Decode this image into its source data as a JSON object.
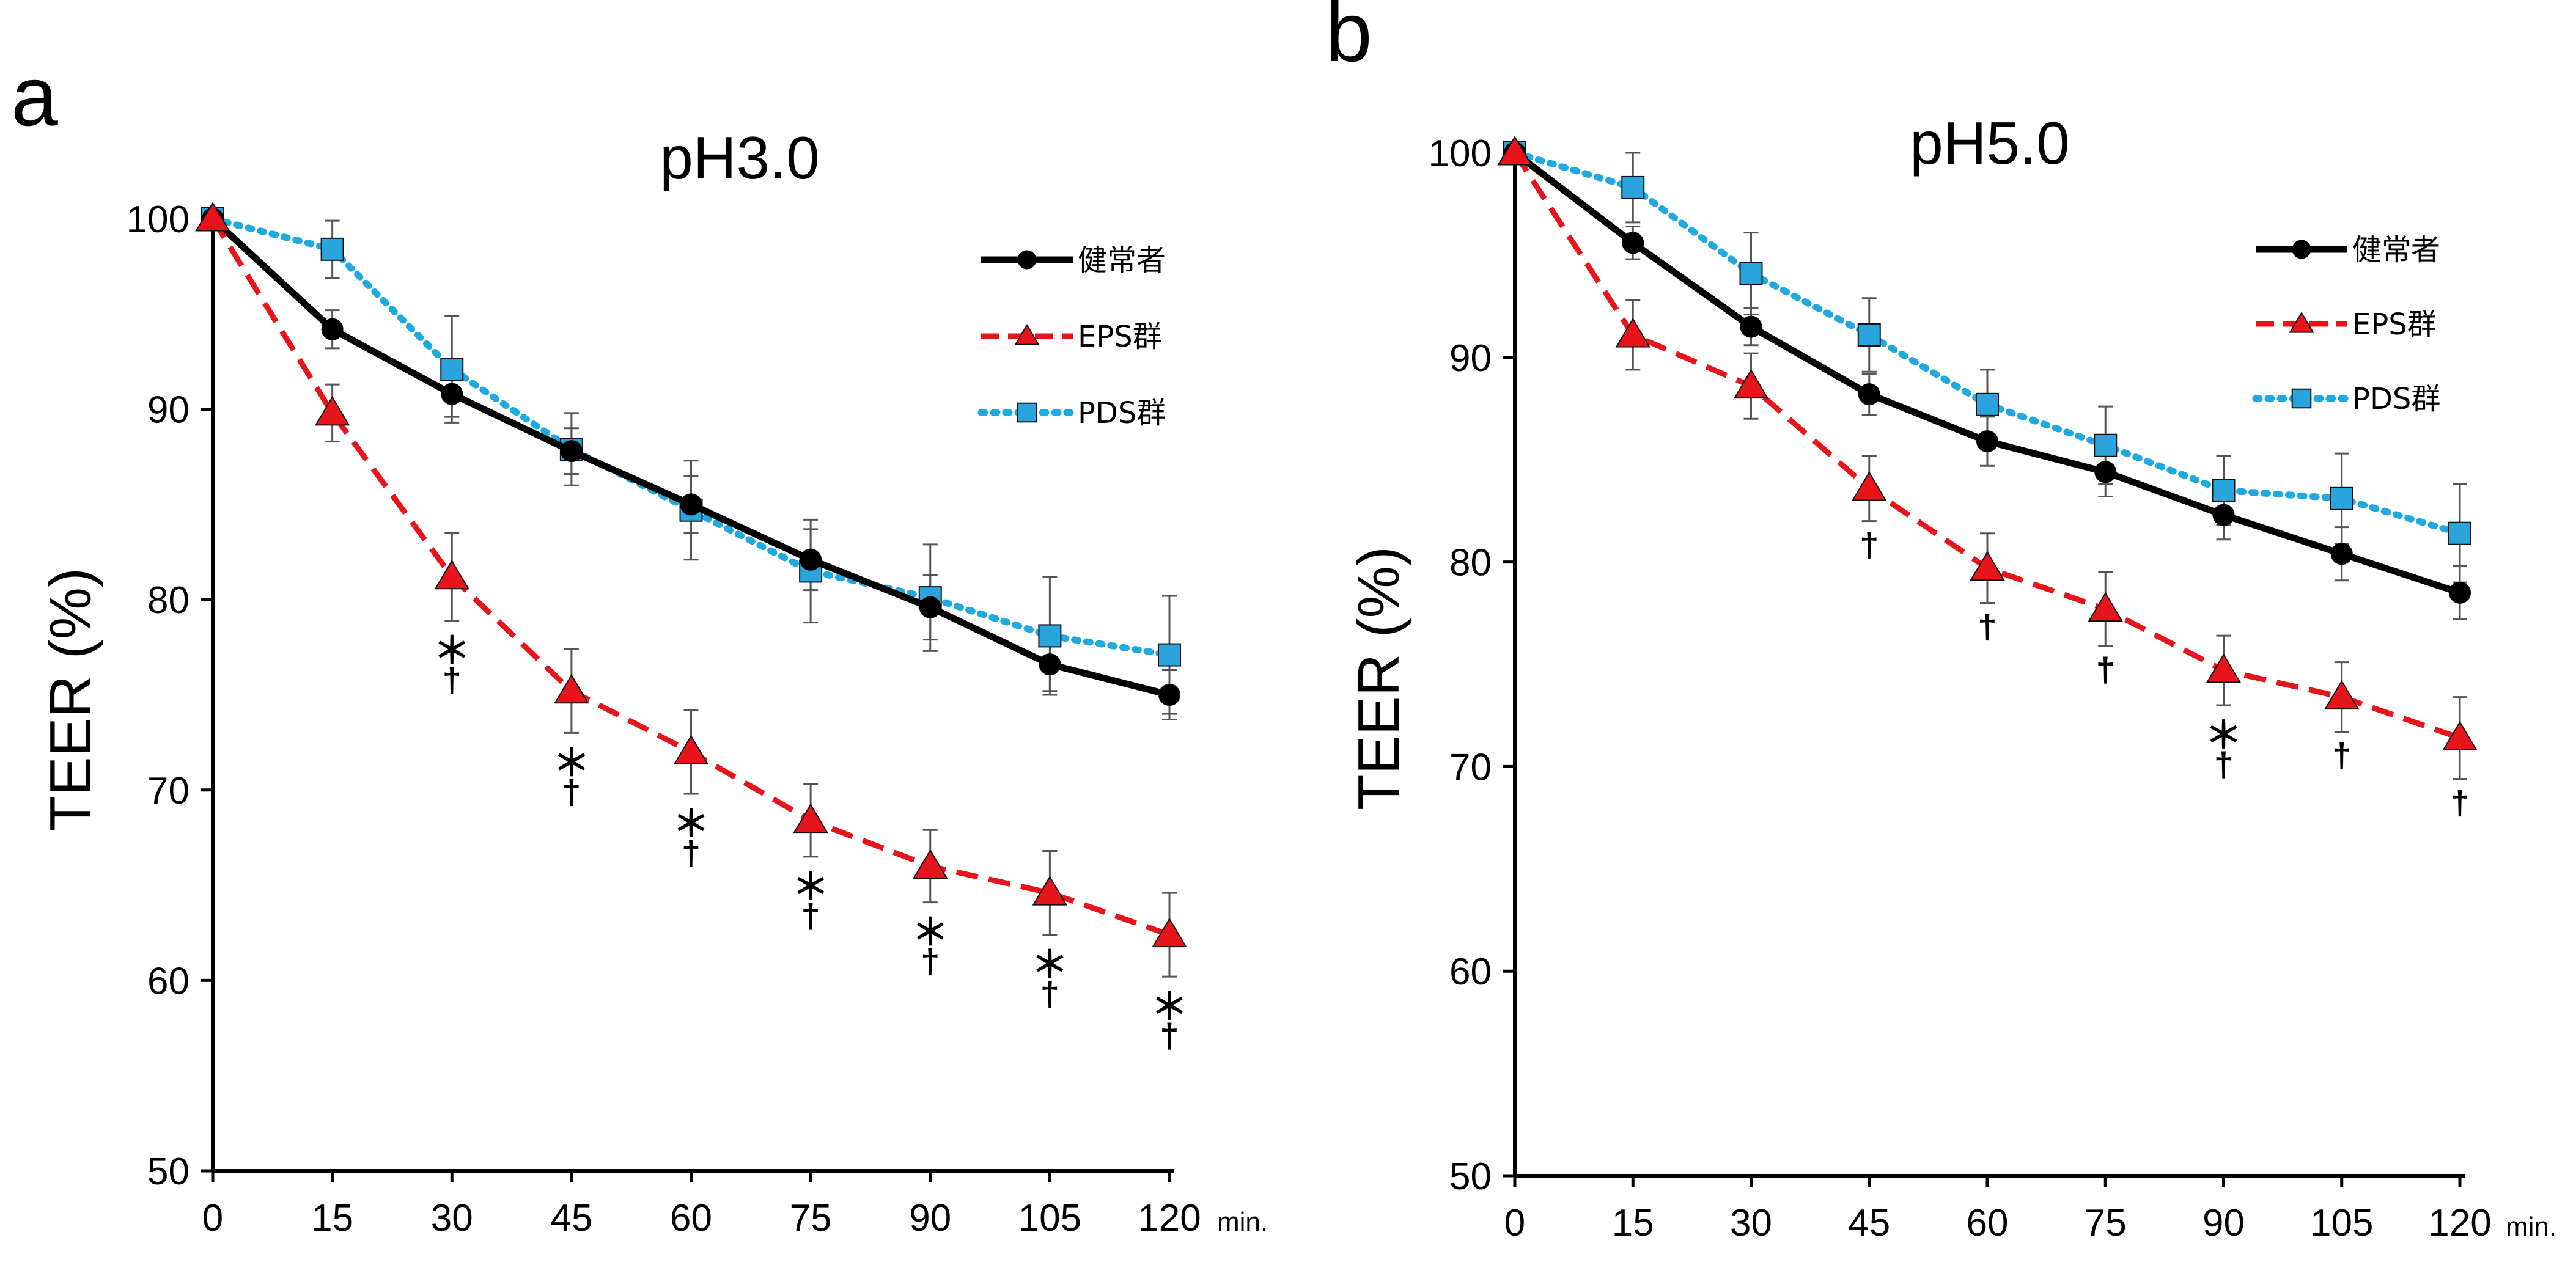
{
  "colors": {
    "healthy": "#000000",
    "eps": "#e8141c",
    "eps_fill": "#e8141c",
    "pds": "#1ea9e1",
    "pds_fill": "#2aa4dc",
    "errorbar": "#555555",
    "axis": "#000000"
  },
  "chart_data": [
    {
      "panel": "a",
      "type": "line",
      "title": "pH3.0",
      "ylabel": "TEER (%)",
      "xunit": "min.",
      "ylim": [
        50,
        100
      ],
      "yticks": [
        50,
        60,
        70,
        80,
        90,
        100
      ],
      "x": [
        0,
        15,
        30,
        45,
        60,
        75,
        90,
        105,
        120
      ],
      "legend_position": "top-right",
      "series": [
        {
          "key": "healthy",
          "name": "健常者",
          "marker": "circle",
          "style": "solid",
          "values": [
            100,
            94.2,
            90.8,
            87.8,
            85.0,
            82.1,
            79.6,
            76.6,
            75.0
          ],
          "errors": [
            0,
            1.0,
            1.2,
            1.2,
            1.5,
            1.6,
            1.7,
            1.4,
            1.3
          ]
        },
        {
          "key": "eps",
          "name": "EPS群",
          "marker": "triangle",
          "style": "dashed",
          "values": [
            100,
            89.8,
            81.2,
            75.2,
            72.0,
            68.4,
            66.0,
            64.6,
            62.4
          ],
          "errors": [
            0,
            1.5,
            2.3,
            2.2,
            2.2,
            1.9,
            1.9,
            2.2,
            2.2
          ]
        },
        {
          "key": "pds",
          "name": "PDS群",
          "marker": "square",
          "style": "dotted",
          "values": [
            100,
            98.4,
            92.1,
            87.9,
            84.7,
            81.5,
            80.1,
            78.1,
            77.1
          ],
          "errors": [
            0,
            1.5,
            2.8,
            1.9,
            2.6,
            2.7,
            2.8,
            3.1,
            3.1
          ]
        }
      ],
      "annotations": [
        {
          "x": 30,
          "labels": [
            "＊",
            "†"
          ]
        },
        {
          "x": 45,
          "labels": [
            "＊",
            "†"
          ]
        },
        {
          "x": 60,
          "labels": [
            "＊",
            "†"
          ]
        },
        {
          "x": 75,
          "labels": [
            "＊",
            "†"
          ]
        },
        {
          "x": 90,
          "labels": [
            "＊",
            "†"
          ]
        },
        {
          "x": 105,
          "labels": [
            "＊",
            "†"
          ]
        },
        {
          "x": 120,
          "labels": [
            "＊",
            "†"
          ]
        }
      ]
    },
    {
      "panel": "b",
      "type": "line",
      "title": "pH5.0",
      "ylabel": "TEER (%)",
      "xunit": "min.",
      "ylim": [
        50,
        100
      ],
      "yticks": [
        50,
        60,
        70,
        80,
        90,
        100
      ],
      "x": [
        0,
        15,
        30,
        45,
        60,
        75,
        90,
        105,
        120
      ],
      "legend_position": "top-right",
      "series": [
        {
          "key": "healthy",
          "name": "健常者",
          "marker": "circle",
          "style": "solid",
          "values": [
            100,
            95.6,
            91.5,
            88.2,
            85.9,
            84.4,
            82.3,
            80.4,
            78.5
          ],
          "errors": [
            0,
            0.8,
            0.9,
            1.0,
            1.2,
            1.2,
            1.2,
            1.3,
            1.3
          ]
        },
        {
          "key": "eps",
          "name": "EPS群",
          "marker": "triangle",
          "style": "dashed",
          "values": [
            100,
            91.1,
            88.6,
            83.6,
            79.7,
            77.7,
            74.7,
            73.4,
            71.4
          ],
          "errors": [
            0,
            1.7,
            1.6,
            1.6,
            1.7,
            1.8,
            1.7,
            1.7,
            2.0
          ]
        },
        {
          "key": "pds",
          "name": "PDS群",
          "marker": "square",
          "style": "dotted",
          "values": [
            100,
            98.3,
            94.1,
            91.1,
            87.7,
            85.7,
            83.5,
            83.1,
            81.4
          ],
          "errors": [
            0,
            1.7,
            2.0,
            1.8,
            1.7,
            1.9,
            1.7,
            2.2,
            2.4
          ]
        }
      ],
      "annotations": [
        {
          "x": 45,
          "labels": [
            "†"
          ]
        },
        {
          "x": 60,
          "labels": [
            "†"
          ]
        },
        {
          "x": 75,
          "labels": [
            "†"
          ]
        },
        {
          "x": 90,
          "labels": [
            "＊",
            "†"
          ]
        },
        {
          "x": 105,
          "labels": [
            "†"
          ]
        },
        {
          "x": 120,
          "labels": [
            "†"
          ]
        }
      ]
    }
  ]
}
